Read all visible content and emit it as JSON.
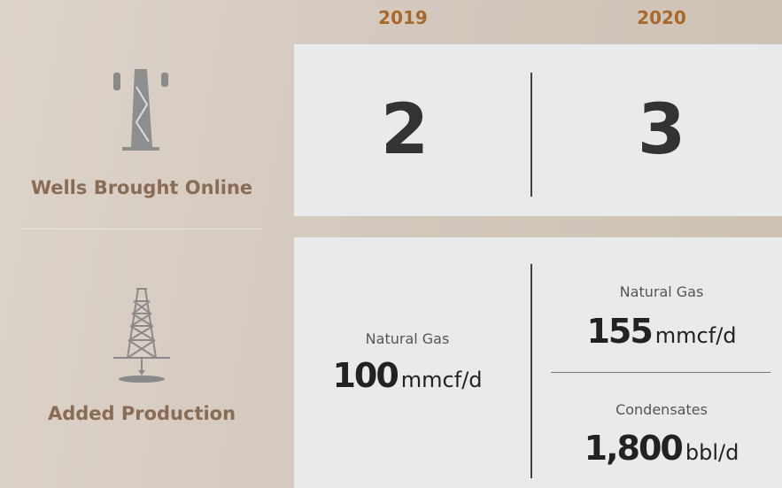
{
  "columns": [
    "2019",
    "2020"
  ],
  "rows": [
    {
      "label": "Wells Brought Online",
      "cells": [
        [
          {
            "value": "2"
          }
        ],
        [
          {
            "value": "3"
          }
        ]
      ]
    },
    {
      "label": "Added Production",
      "cells": [
        [
          {
            "name": "Natural Gas",
            "value": "100",
            "unit": "mmcf/d"
          }
        ],
        [
          {
            "name": "Natural Gas",
            "value": "155",
            "unit": "mmcf/d"
          },
          {
            "name": "Condensates",
            "value": "1,800",
            "unit": "bbl/d"
          }
        ]
      ]
    }
  ]
}
